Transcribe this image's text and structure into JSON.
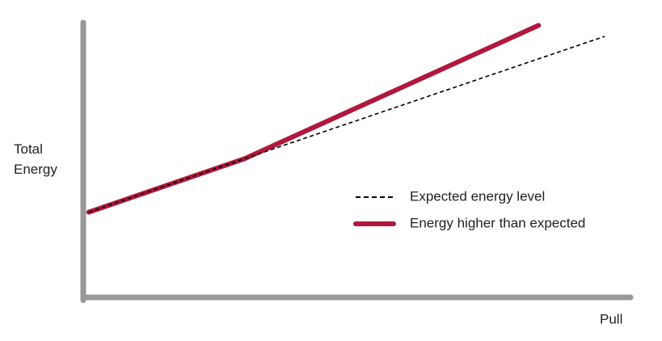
{
  "chart_data": {
    "type": "line",
    "x_label": "Pull",
    "y_label": "Total Energy",
    "xlim": [
      0,
      100
    ],
    "ylim": [
      0,
      100
    ],
    "series": [
      {
        "name": "Expected energy level",
        "color": "#000000",
        "dashed": true,
        "x": [
          1,
          29.5,
          95.3
        ],
        "values": [
          31,
          50.5,
          95
        ]
      },
      {
        "name": "Energy higher than expected",
        "color": "#b0183e",
        "dashed": false,
        "x": [
          1,
          29.5,
          83.2
        ],
        "values": [
          31,
          50.5,
          99
        ]
      }
    ]
  }
}
